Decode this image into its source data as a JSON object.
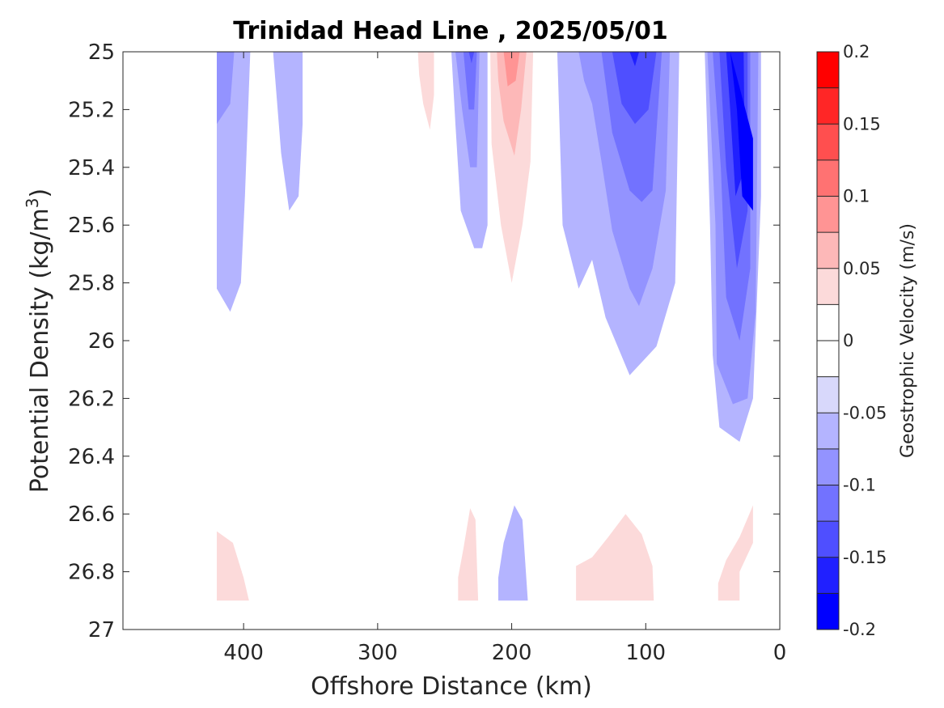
{
  "chart_data": {
    "type": "filled-contour",
    "title": "Trinidad Head Line , 2025/05/01",
    "xlabel": "Offshore Distance (km)",
    "ylabel_main": "Potential Density (kg/m",
    "ylabel_sup": "3",
    "ylabel_tail": ")",
    "xlim": [
      490,
      0
    ],
    "ylim": [
      25,
      27
    ],
    "x_ticks": [
      400,
      300,
      200,
      100,
      0
    ],
    "x_tick_labels": [
      "400",
      "300",
      "200",
      "100",
      "0"
    ],
    "y_ticks": [
      25,
      25.2,
      25.4,
      25.6,
      25.8,
      26,
      26.2,
      26.4,
      26.6,
      26.8,
      27
    ],
    "y_tick_labels": [
      "25",
      "25.2",
      "25.4",
      "25.6",
      "25.8",
      "26",
      "26.2",
      "26.4",
      "26.6",
      "26.8",
      "27"
    ],
    "colorbar": {
      "label": "Geostrophic Velocity (m/s)",
      "range": [
        -0.2,
        0.2
      ],
      "levels": [
        -0.2,
        -0.175,
        -0.15,
        -0.125,
        -0.1,
        -0.075,
        -0.05,
        -0.025,
        0,
        0.025,
        0.05,
        0.075,
        0.1,
        0.125,
        0.15,
        0.175,
        0.2
      ],
      "colors": [
        "#0000ff",
        "#2020ff",
        "#4f4fff",
        "#7272ff",
        "#9393ff",
        "#b4b4ff",
        "#d8d8fb",
        "#ffffff",
        "#ffffff",
        "#fcdada",
        "#fdb8b8",
        "#ff9494",
        "#ff7272",
        "#ff4f4f",
        "#ff2626",
        "#ff0000"
      ],
      "tick_values": [
        -0.2,
        -0.15,
        -0.1,
        -0.05,
        0,
        0.05,
        0.1,
        0.15,
        0.2
      ],
      "tick_labels": [
        "-0.2",
        "-0.15",
        "-0.1",
        "-0.05",
        "0",
        "0.05",
        "0.1",
        "0.15",
        "0.2"
      ]
    },
    "regions": [
      {
        "name": "w420-l1",
        "level": -0.05,
        "points": [
          [
            420,
            25
          ],
          [
            395,
            25
          ],
          [
            399,
            25.5
          ],
          [
            402,
            25.8
          ],
          [
            410,
            25.9
          ],
          [
            420,
            25.82
          ]
        ]
      },
      {
        "name": "w420-l2",
        "level": -0.075,
        "points": [
          [
            420,
            25
          ],
          [
            407,
            25
          ],
          [
            410,
            25.18
          ],
          [
            420,
            25.25
          ]
        ]
      },
      {
        "name": "w360-l1",
        "level": -0.05,
        "points": [
          [
            378,
            25
          ],
          [
            356,
            25
          ],
          [
            356,
            25.25
          ],
          [
            359,
            25.5
          ],
          [
            366,
            25.55
          ],
          [
            372,
            25.35
          ]
        ]
      },
      {
        "name": "p265-l1",
        "level": 0.05,
        "points": [
          [
            270,
            25
          ],
          [
            258,
            25
          ],
          [
            258,
            25.15
          ],
          [
            261,
            25.27
          ],
          [
            266,
            25.18
          ],
          [
            269,
            25.08
          ]
        ]
      },
      {
        "name": "w240-l1",
        "level": -0.05,
        "points": [
          [
            245,
            25
          ],
          [
            218,
            25
          ],
          [
            218,
            25.6
          ],
          [
            222,
            25.68
          ],
          [
            228,
            25.68
          ],
          [
            238,
            25.55
          ],
          [
            242,
            25.25
          ]
        ]
      },
      {
        "name": "w240-l2",
        "level": -0.075,
        "points": [
          [
            242,
            25
          ],
          [
            224,
            25
          ],
          [
            226,
            25.4
          ],
          [
            231,
            25.4
          ],
          [
            237,
            25.2
          ]
        ]
      },
      {
        "name": "w240-l3",
        "level": -0.1,
        "points": [
          [
            236,
            25
          ],
          [
            226,
            25
          ],
          [
            228,
            25.2
          ],
          [
            232,
            25.2
          ]
        ]
      },
      {
        "name": "w240-l4",
        "level": -0.125,
        "points": [
          [
            232,
            25
          ],
          [
            228,
            25
          ],
          [
            230,
            25.04
          ]
        ]
      },
      {
        "name": "p205-l1",
        "level": 0.05,
        "points": [
          [
            216,
            25
          ],
          [
            184,
            25
          ],
          [
            186,
            25.38
          ],
          [
            192,
            25.6
          ],
          [
            200,
            25.8
          ],
          [
            208,
            25.6
          ],
          [
            215,
            25.32
          ]
        ]
      },
      {
        "name": "p205-l2",
        "level": 0.075,
        "points": [
          [
            211,
            25
          ],
          [
            189,
            25
          ],
          [
            193,
            25.2
          ],
          [
            198,
            25.36
          ],
          [
            206,
            25.24
          ],
          [
            210,
            25.1
          ]
        ]
      },
      {
        "name": "p205-l3",
        "level": 0.1,
        "points": [
          [
            206,
            25
          ],
          [
            194,
            25
          ],
          [
            197,
            25.1
          ],
          [
            203,
            25.12
          ]
        ]
      },
      {
        "name": "w120-l1",
        "level": -0.05,
        "points": [
          [
            166,
            25
          ],
          [
            75,
            25
          ],
          [
            78,
            25.8
          ],
          [
            92,
            26.02
          ],
          [
            98,
            26.05
          ],
          [
            112,
            26.12
          ],
          [
            130,
            25.92
          ],
          [
            140,
            25.72
          ],
          [
            150,
            25.82
          ],
          [
            162,
            25.6
          ]
        ]
      },
      {
        "name": "w120-l2",
        "level": -0.075,
        "points": [
          [
            150,
            25
          ],
          [
            82,
            25
          ],
          [
            85,
            25.48
          ],
          [
            95,
            25.75
          ],
          [
            105,
            25.88
          ],
          [
            112,
            25.82
          ],
          [
            125,
            25.62
          ],
          [
            133,
            25.38
          ],
          [
            140,
            25.18
          ],
          [
            146,
            25.1
          ]
        ]
      },
      {
        "name": "w120-l3",
        "level": -0.1,
        "points": [
          [
            133,
            25
          ],
          [
            88,
            25
          ],
          [
            95,
            25.48
          ],
          [
            103,
            25.52
          ],
          [
            112,
            25.48
          ],
          [
            125,
            25.28
          ]
        ]
      },
      {
        "name": "w120-l4",
        "level": -0.125,
        "points": [
          [
            125,
            25
          ],
          [
            92,
            25
          ],
          [
            98,
            25.2
          ],
          [
            108,
            25.25
          ],
          [
            118,
            25.18
          ]
        ]
      },
      {
        "name": "w120-l5",
        "level": -0.15,
        "points": [
          [
            112,
            25
          ],
          [
            105,
            25
          ],
          [
            108,
            25.05
          ]
        ]
      },
      {
        "name": "w30-l1",
        "level": -0.05,
        "points": [
          [
            56,
            25
          ],
          [
            14,
            25
          ],
          [
            14,
            25.5
          ],
          [
            20,
            26.2
          ],
          [
            30,
            26.35
          ],
          [
            45,
            26.3
          ],
          [
            50,
            26.05
          ],
          [
            52,
            25.6
          ]
        ]
      },
      {
        "name": "w30-l2",
        "level": -0.075,
        "points": [
          [
            54,
            25
          ],
          [
            16,
            25
          ],
          [
            18,
            25.9
          ],
          [
            24,
            26.2
          ],
          [
            35,
            26.22
          ],
          [
            47,
            26.08
          ],
          [
            48,
            25.6
          ]
        ]
      },
      {
        "name": "w30-l3",
        "level": -0.1,
        "points": [
          [
            50,
            25
          ],
          [
            22,
            25
          ],
          [
            22,
            25.75
          ],
          [
            30,
            26
          ],
          [
            40,
            25.85
          ],
          [
            44,
            25.4
          ]
        ]
      },
      {
        "name": "w30-l4",
        "level": -0.125,
        "points": [
          [
            45,
            25
          ],
          [
            24,
            25
          ],
          [
            24,
            25.55
          ],
          [
            32,
            25.75
          ],
          [
            40,
            25.4
          ]
        ]
      },
      {
        "name": "w30-l5",
        "level": -0.15,
        "points": [
          [
            40,
            25
          ],
          [
            27,
            25
          ],
          [
            26,
            25.4
          ],
          [
            33,
            25.5
          ],
          [
            37,
            25.2
          ]
        ]
      },
      {
        "name": "w30-l6",
        "level": -0.175,
        "points": [
          [
            37,
            25
          ],
          [
            20,
            25.3
          ],
          [
            20,
            25.55
          ],
          [
            28,
            25.5
          ],
          [
            32,
            25.2
          ]
        ]
      },
      {
        "name": "p410-l1",
        "level": 0.05,
        "points": [
          [
            420,
            26.66
          ],
          [
            408,
            26.7
          ],
          [
            400,
            26.82
          ],
          [
            396,
            26.9
          ],
          [
            420,
            26.9
          ]
        ]
      },
      {
        "name": "p230-l1",
        "level": 0.05,
        "points": [
          [
            240,
            26.9
          ],
          [
            225,
            26.9
          ],
          [
            227,
            26.62
          ],
          [
            231,
            26.58
          ],
          [
            236,
            26.72
          ],
          [
            240,
            26.82
          ]
        ]
      },
      {
        "name": "w200-l1",
        "level": -0.05,
        "points": [
          [
            210,
            26.9
          ],
          [
            188,
            26.9
          ],
          [
            192,
            26.62
          ],
          [
            198,
            26.57
          ],
          [
            206,
            26.7
          ],
          [
            210,
            26.82
          ]
        ]
      },
      {
        "name": "p120-l1",
        "level": 0.05,
        "points": [
          [
            152,
            26.9
          ],
          [
            94,
            26.9
          ],
          [
            95,
            26.78
          ],
          [
            103,
            26.67
          ],
          [
            115,
            26.6
          ],
          [
            128,
            26.68
          ],
          [
            140,
            26.75
          ],
          [
            152,
            26.78
          ]
        ]
      },
      {
        "name": "p30-l1",
        "level": 0.05,
        "points": [
          [
            46,
            26.9
          ],
          [
            30,
            26.9
          ],
          [
            30,
            26.8
          ],
          [
            20,
            26.7
          ],
          [
            20,
            26.57
          ],
          [
            30,
            26.68
          ],
          [
            40,
            26.76
          ],
          [
            46,
            26.84
          ]
        ]
      }
    ]
  }
}
